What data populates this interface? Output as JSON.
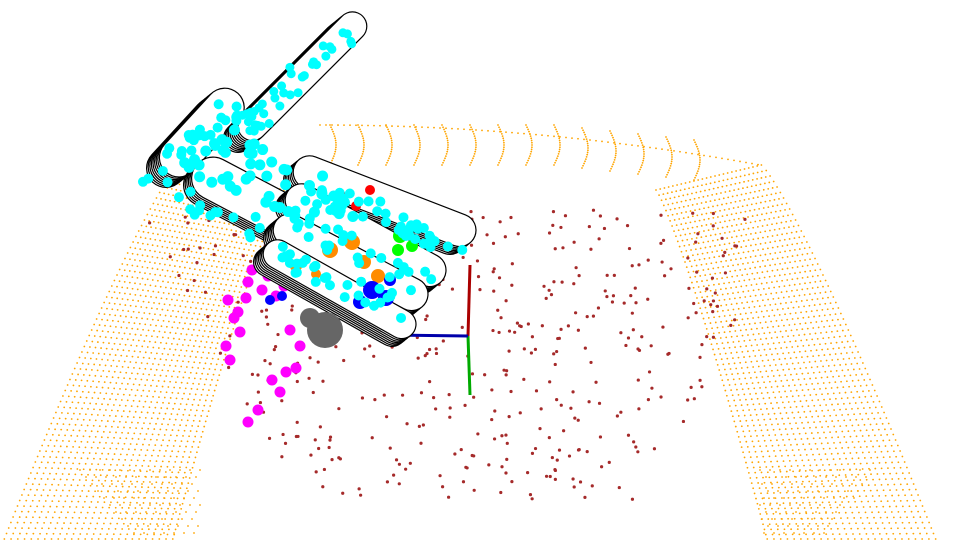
{
  "scene": {
    "background": "#ffffff",
    "colors": {
      "container_surface": "#ffa500",
      "object_points": "#a52a2a",
      "gripper_outline": "#000000",
      "gripper_fill": "#ffffff",
      "collision_spheres": "#00ffff",
      "fingertip_spheres": "#ff00ff",
      "joint_sphere_green": "#00ff00",
      "joint_sphere_blue": "#0000ff",
      "joint_sphere_orange": "#ff8c00",
      "joint_sphere_red": "#ff0000",
      "wrist_sphere": "#666666",
      "axis_x": "#0000aa",
      "axis_y": "#00aa00",
      "axis_z": "#aa0000"
    },
    "icons": {
      "container": "container-point-cloud",
      "object": "object-point-cloud",
      "hand": "robot-hand-mesh",
      "frame": "coordinate-frame-axes"
    }
  }
}
